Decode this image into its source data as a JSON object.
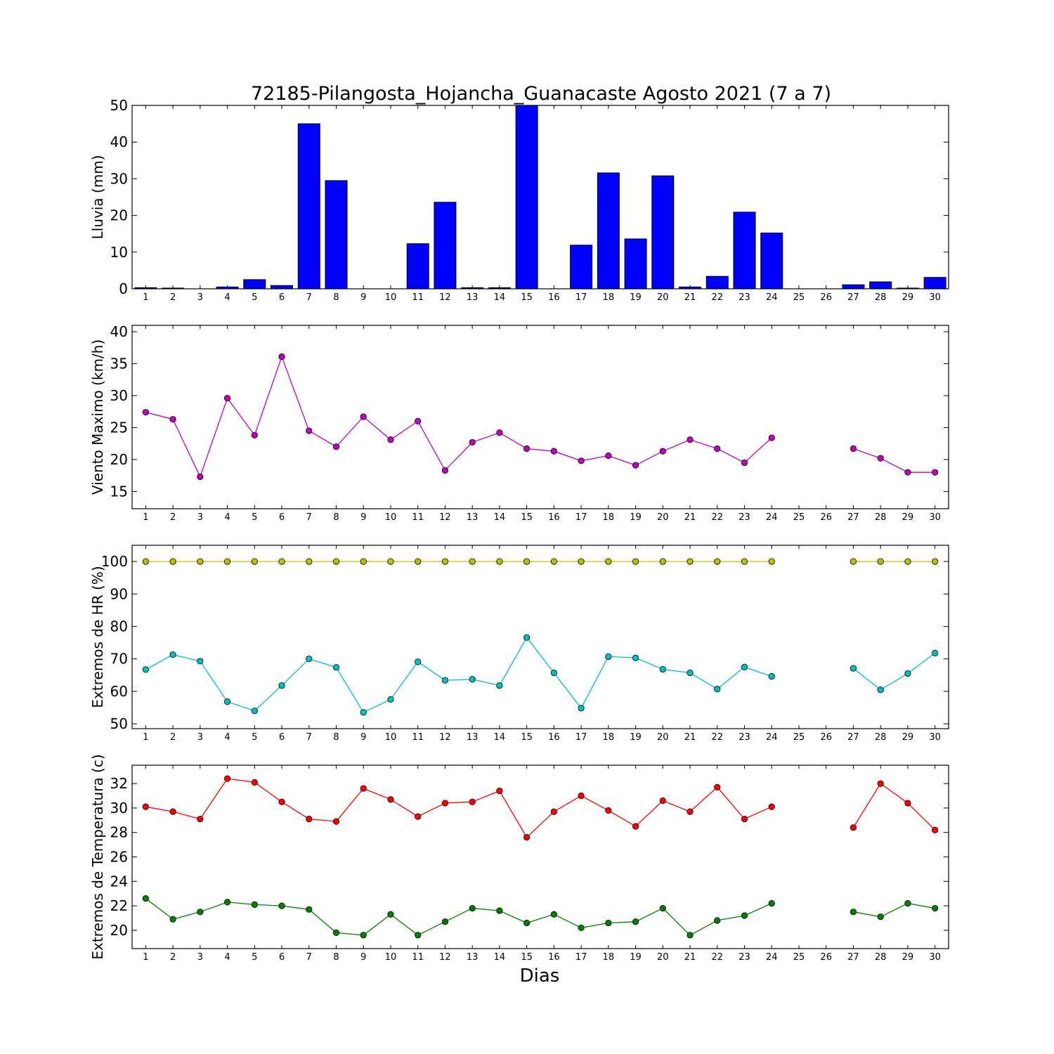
{
  "title": "72185-Pilangosta_Hojancha_Guanacaste Agosto 2021  (7 a 7)",
  "xlabel": "Dias",
  "colors": {
    "bar": "#0000ff",
    "wind": "#bf00bf",
    "hr_max": "#bfbf00",
    "hr_min": "#00bfbf",
    "t_max": "#ff0000",
    "t_min": "#008000"
  },
  "chart_data": [
    {
      "type": "bar",
      "ylabel": "Lluvia (mm)",
      "x": [
        1,
        2,
        3,
        4,
        5,
        6,
        7,
        8,
        9,
        10,
        11,
        12,
        13,
        14,
        15,
        16,
        17,
        18,
        19,
        20,
        21,
        22,
        23,
        24,
        25,
        26,
        27,
        28,
        29,
        30
      ],
      "ylim": [
        0,
        50
      ],
      "yticks": [
        0,
        10,
        20,
        30,
        40,
        50
      ],
      "series": [
        {
          "values": [
            0.3,
            0.2,
            0,
            0.5,
            2.5,
            0.9,
            45,
            29.5,
            0,
            0,
            12.3,
            23.6,
            0.3,
            0.3,
            50,
            0,
            11.9,
            31.6,
            13.6,
            30.8,
            0.5,
            3.4,
            20.9,
            15.2,
            0,
            0,
            1.1,
            1.9,
            0.2,
            3.1
          ]
        }
      ]
    },
    {
      "type": "line",
      "ylabel": "Viento Maximo (km/h)",
      "x": [
        1,
        2,
        3,
        4,
        5,
        6,
        7,
        8,
        9,
        10,
        11,
        12,
        13,
        14,
        15,
        16,
        17,
        18,
        19,
        20,
        21,
        22,
        23,
        24,
        25,
        26,
        27,
        28,
        29,
        30
      ],
      "ylim": [
        12.3,
        41
      ],
      "yticks": [
        15,
        20,
        25,
        30,
        35,
        40
      ],
      "series": [
        {
          "values": [
            27.4,
            26.3,
            17.3,
            29.6,
            23.8,
            36.1,
            24.5,
            22,
            26.7,
            23.1,
            26,
            18.3,
            22.7,
            24.2,
            21.7,
            21.3,
            19.8,
            20.6,
            19.1,
            21.3,
            23.1,
            21.7,
            19.5,
            23.4,
            null,
            null,
            21.7,
            20.2,
            18,
            18
          ]
        }
      ]
    },
    {
      "type": "line",
      "ylabel": "Extremos de HR (%)",
      "x": [
        1,
        2,
        3,
        4,
        5,
        6,
        7,
        8,
        9,
        10,
        11,
        12,
        13,
        14,
        15,
        16,
        17,
        18,
        19,
        20,
        21,
        22,
        23,
        24,
        25,
        26,
        27,
        28,
        29,
        30
      ],
      "ylim": [
        48.5,
        105
      ],
      "yticks": [
        50,
        60,
        70,
        80,
        90,
        100
      ],
      "series": [
        {
          "values": [
            100,
            100,
            100,
            100,
            100,
            100,
            100,
            100,
            100,
            100,
            100,
            100,
            100,
            100,
            100,
            100,
            100,
            100,
            100,
            100,
            100,
            100,
            100,
            100,
            null,
            null,
            100,
            100,
            100,
            100
          ]
        },
        {
          "values": [
            66.7,
            71.3,
            69.3,
            56.8,
            54,
            61.8,
            70,
            67.4,
            53.5,
            57.5,
            69.1,
            63.4,
            63.7,
            61.8,
            76.6,
            65.7,
            54.8,
            70.7,
            70.3,
            66.8,
            65.7,
            60.7,
            67.5,
            64.6,
            null,
            null,
            67.1,
            60.5,
            65.5,
            71.8
          ]
        }
      ]
    },
    {
      "type": "line",
      "ylabel": "Extremos de Temperatura (c)",
      "x": [
        1,
        2,
        3,
        4,
        5,
        6,
        7,
        8,
        9,
        10,
        11,
        12,
        13,
        14,
        15,
        16,
        17,
        18,
        19,
        20,
        21,
        22,
        23,
        24,
        25,
        26,
        27,
        28,
        29,
        30
      ],
      "ylim": [
        18.5,
        33.5
      ],
      "yticks": [
        20,
        22,
        24,
        26,
        28,
        30,
        32
      ],
      "series": [
        {
          "values": [
            30.1,
            29.7,
            29.1,
            32.4,
            32.1,
            30.5,
            29.1,
            28.9,
            31.6,
            30.7,
            29.3,
            30.4,
            30.5,
            31.4,
            27.6,
            29.7,
            31,
            29.8,
            28.5,
            30.6,
            29.7,
            31.7,
            29.1,
            30.1,
            null,
            null,
            28.4,
            32,
            30.4,
            28.2
          ]
        },
        {
          "values": [
            22.6,
            20.9,
            21.5,
            22.3,
            22.1,
            22,
            21.7,
            19.8,
            19.6,
            21.3,
            19.6,
            20.7,
            21.8,
            21.6,
            20.6,
            21.3,
            20.2,
            20.6,
            20.7,
            21.8,
            19.6,
            20.8,
            21.2,
            22.2,
            null,
            null,
            21.5,
            21.1,
            22.2,
            21.8
          ]
        }
      ]
    }
  ]
}
